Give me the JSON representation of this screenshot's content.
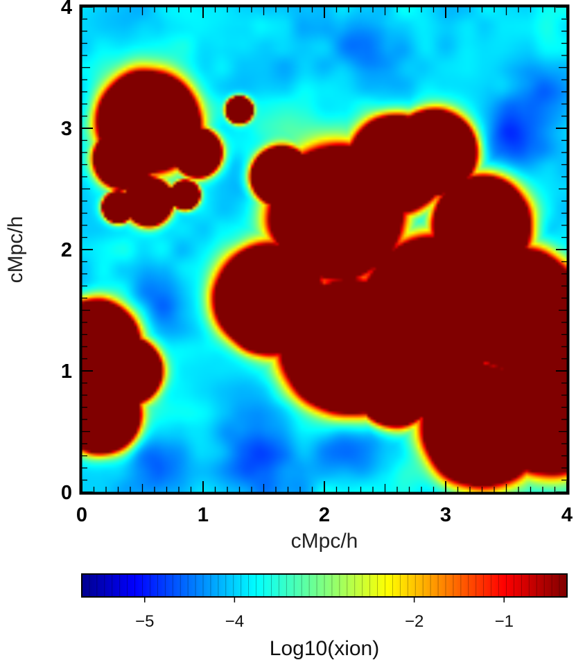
{
  "chart_data": {
    "type": "heatmap",
    "xlabel": "cMpc/h",
    "ylabel": "cMpc/h",
    "xlim": [
      0,
      4
    ],
    "ylim": [
      0,
      4
    ],
    "xticks": [
      "0",
      "1",
      "2",
      "3",
      "4"
    ],
    "yticks": [
      "0",
      "1",
      "2",
      "3",
      "4"
    ],
    "grid": false,
    "colormap": "jet",
    "colorbar": {
      "label": "Log10(xion)",
      "range": [
        -5.7,
        -0.3
      ],
      "ticks": [
        {
          "value": -5,
          "label": "−5"
        },
        {
          "value": -4,
          "label": "−4"
        },
        {
          "value": -2,
          "label": "−2"
        },
        {
          "value": -1,
          "label": "−1"
        }
      ]
    },
    "ionized_regions": [
      {
        "x": 0.55,
        "y": 3.05,
        "r": 0.42
      },
      {
        "x": 0.35,
        "y": 2.75,
        "r": 0.25
      },
      {
        "x": 0.95,
        "y": 2.8,
        "r": 0.2
      },
      {
        "x": 0.3,
        "y": 2.35,
        "r": 0.13
      },
      {
        "x": 0.55,
        "y": 2.4,
        "r": 0.2
      },
      {
        "x": 0.85,
        "y": 2.45,
        "r": 0.12
      },
      {
        "x": 1.3,
        "y": 3.15,
        "r": 0.11
      },
      {
        "x": 1.65,
        "y": 2.6,
        "r": 0.25
      },
      {
        "x": 2.1,
        "y": 2.3,
        "r": 0.55
      },
      {
        "x": 2.6,
        "y": 2.7,
        "r": 0.4
      },
      {
        "x": 2.9,
        "y": 2.8,
        "r": 0.35
      },
      {
        "x": 3.3,
        "y": 2.2,
        "r": 0.4
      },
      {
        "x": 1.55,
        "y": 1.6,
        "r": 0.45
      },
      {
        "x": 2.2,
        "y": 1.2,
        "r": 0.55
      },
      {
        "x": 2.9,
        "y": 1.5,
        "r": 0.6
      },
      {
        "x": 3.6,
        "y": 1.5,
        "r": 0.5
      },
      {
        "x": 3.3,
        "y": 0.55,
        "r": 0.5
      },
      {
        "x": 3.85,
        "y": 0.6,
        "r": 0.45
      },
      {
        "x": 2.6,
        "y": 0.9,
        "r": 0.35
      },
      {
        "x": 3.8,
        "y": 1.1,
        "r": 0.35
      },
      {
        "x": 0.1,
        "y": 1.2,
        "r": 0.38
      },
      {
        "x": 0.15,
        "y": 0.65,
        "r": 0.33
      },
      {
        "x": 0.38,
        "y": 1.0,
        "r": 0.28
      }
    ],
    "neutral_pockets": [
      {
        "x": 0.6,
        "y": 0.25,
        "r": 0.3
      },
      {
        "x": 1.5,
        "y": 0.3,
        "r": 0.35
      },
      {
        "x": 2.2,
        "y": 0.35,
        "r": 0.3
      },
      {
        "x": 3.55,
        "y": 2.85,
        "r": 0.25
      },
      {
        "x": 3.8,
        "y": 3.3,
        "r": 0.3
      },
      {
        "x": 0.6,
        "y": 1.6,
        "r": 0.3
      },
      {
        "x": 2.3,
        "y": 3.7,
        "r": 0.3
      }
    ]
  }
}
